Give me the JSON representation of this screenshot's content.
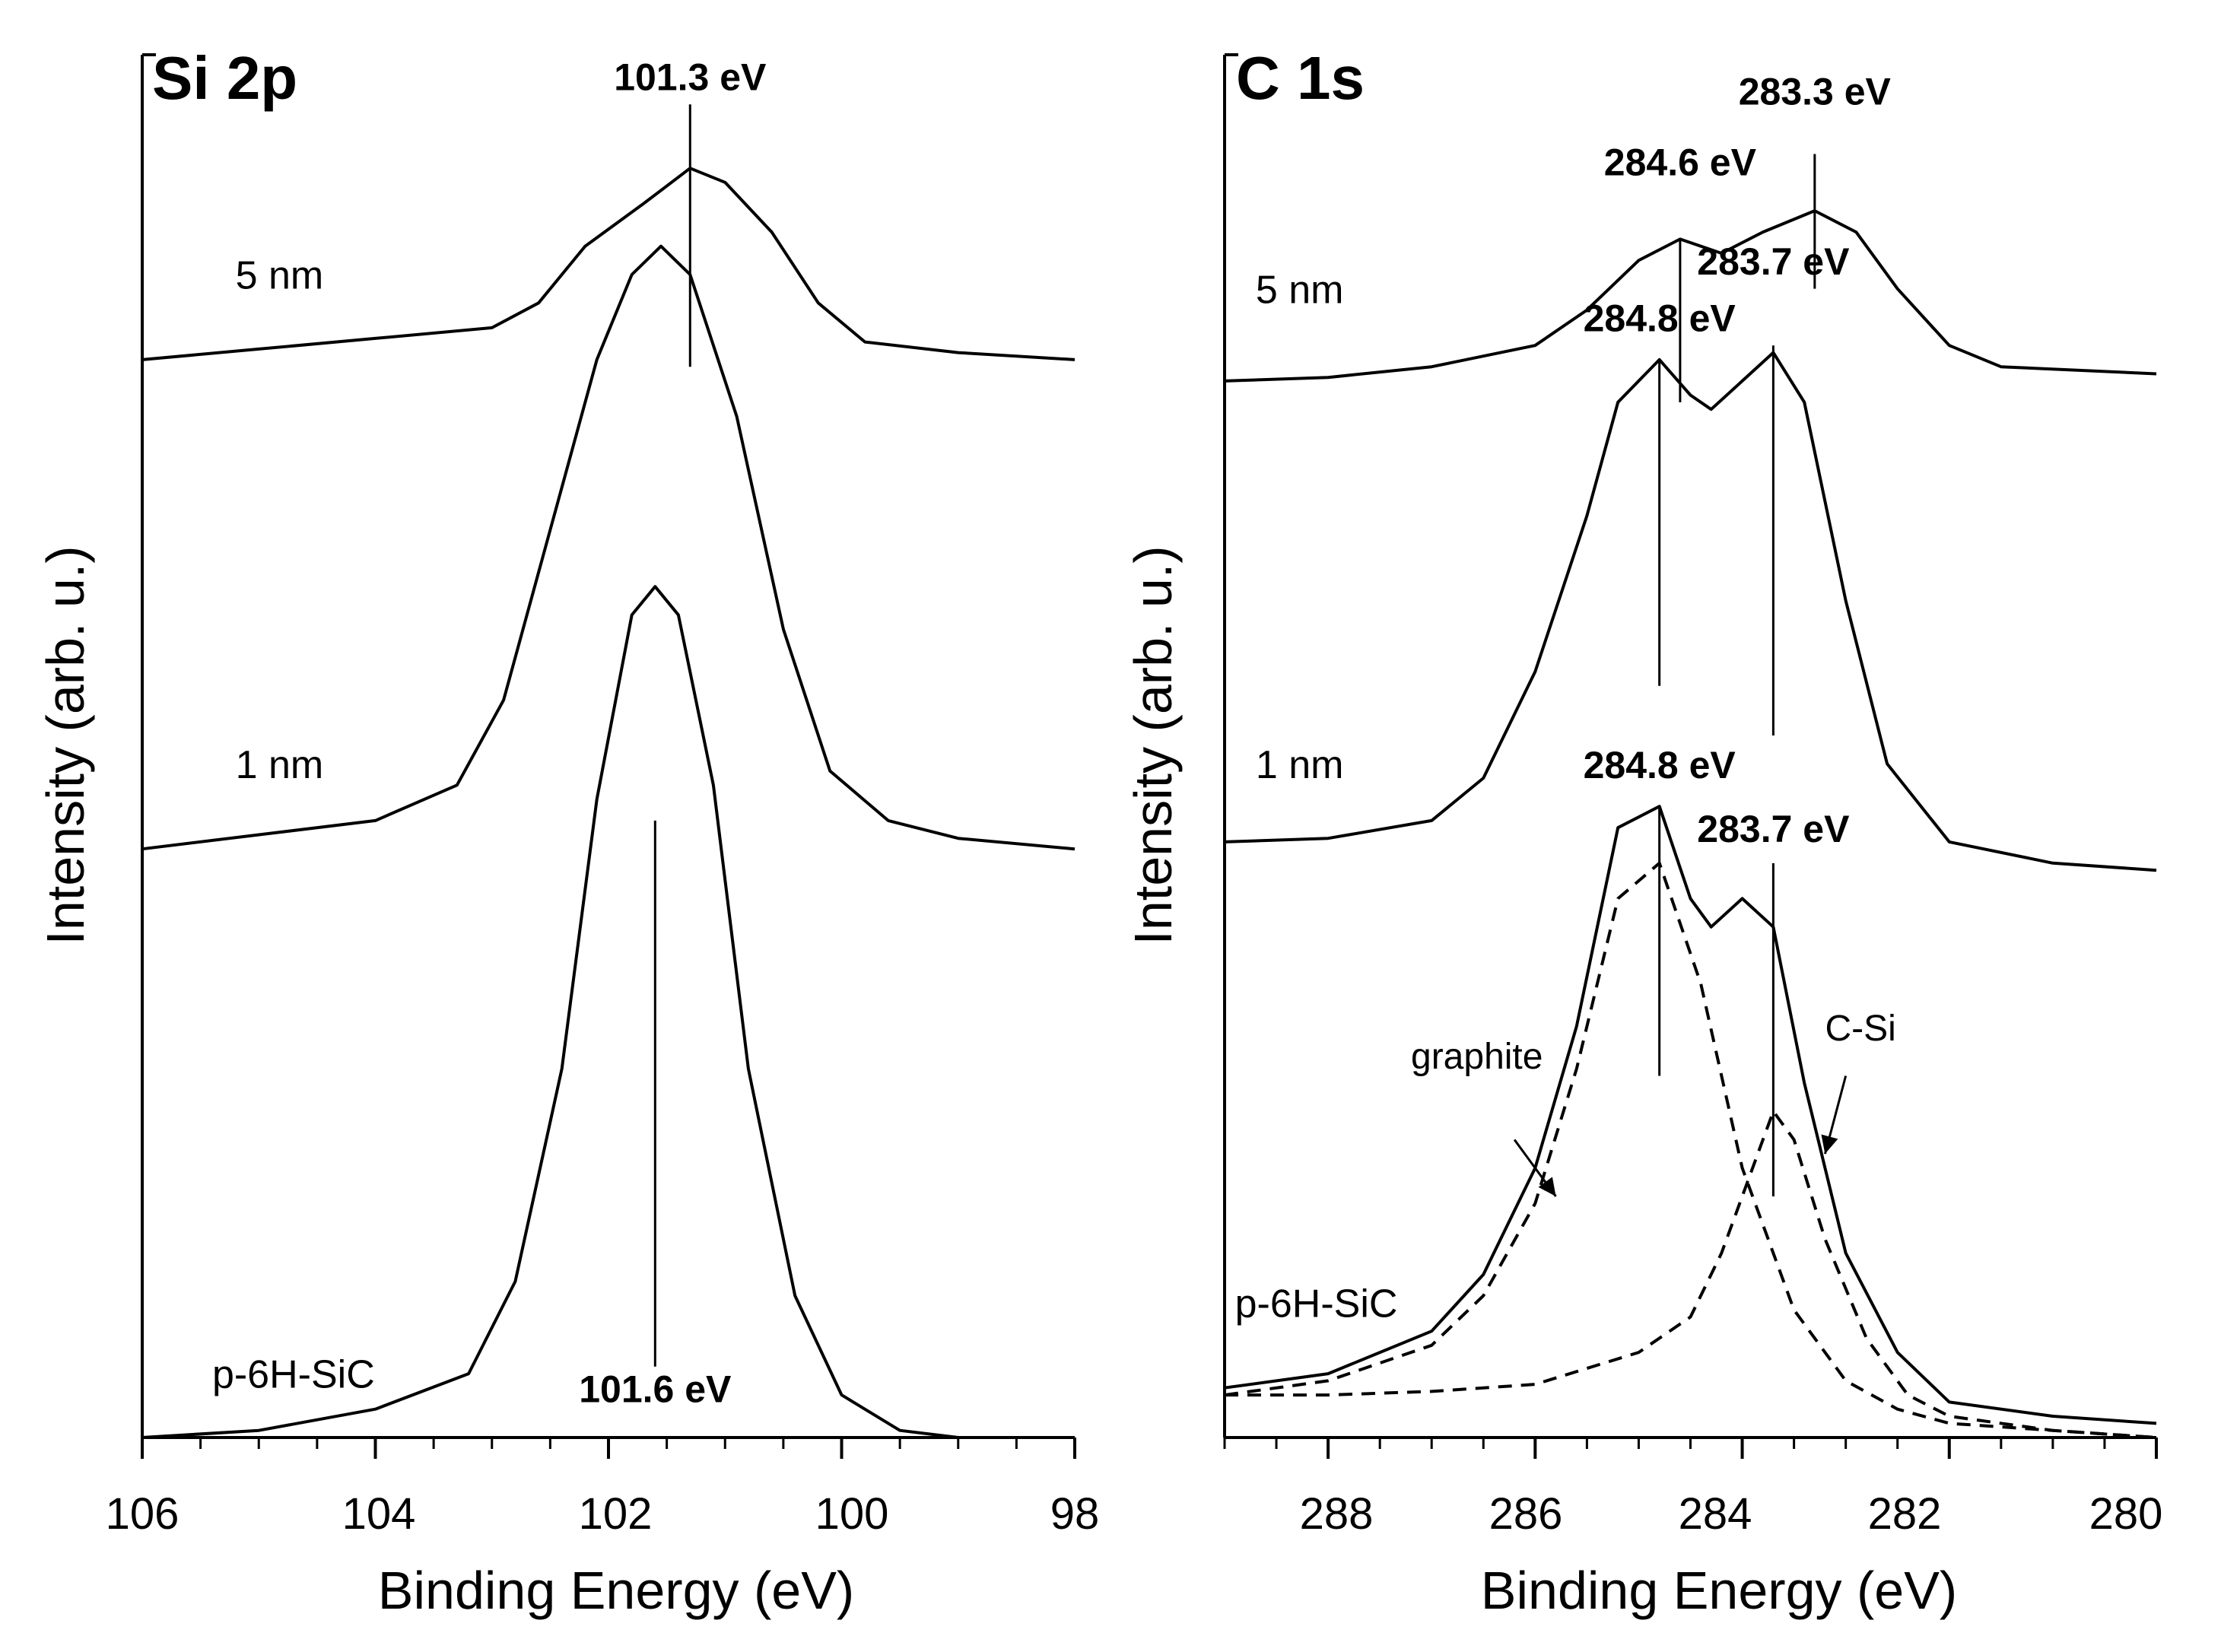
{
  "chart_data": [
    {
      "type": "line",
      "title": "Si 2p",
      "xlabel": "Binding Energy (eV)",
      "ylabel": "Intensity (arb. u.)",
      "xlim": [
        106,
        98
      ],
      "x_ticks": [
        "106",
        "104",
        "102",
        "100",
        "98"
      ],
      "ylim": [
        0,
        1.95
      ],
      "series": [
        {
          "name": "5 nm",
          "label": "5 nm",
          "label_x": 105.2,
          "label_y": 1.62,
          "points": [
            [
              106,
              1.52
            ],
            [
              105,
              1.535
            ],
            [
              104,
              1.55
            ],
            [
              103,
              1.565
            ],
            [
              102.6,
              1.6
            ],
            [
              102.2,
              1.68
            ],
            [
              101.7,
              1.74
            ],
            [
              101.3,
              1.79
            ],
            [
              101,
              1.77
            ],
            [
              100.6,
              1.7
            ],
            [
              100.2,
              1.6
            ],
            [
              99.8,
              1.545
            ],
            [
              99,
              1.53
            ],
            [
              98,
              1.52
            ]
          ]
        },
        {
          "name": "1 nm",
          "label": "1 nm",
          "label_x": 105.2,
          "label_y": 0.93,
          "points": [
            [
              106,
              0.83
            ],
            [
              105,
              0.85
            ],
            [
              104,
              0.87
            ],
            [
              103.3,
              0.92
            ],
            [
              102.9,
              1.04
            ],
            [
              102.5,
              1.28
            ],
            [
              102.1,
              1.52
            ],
            [
              101.8,
              1.64
            ],
            [
              101.55,
              1.68
            ],
            [
              101.3,
              1.64
            ],
            [
              100.9,
              1.44
            ],
            [
              100.5,
              1.14
            ],
            [
              100.1,
              0.94
            ],
            [
              99.6,
              0.87
            ],
            [
              99,
              0.845
            ],
            [
              98,
              0.83
            ]
          ]
        },
        {
          "name": "p-6H-SiC",
          "label": "p-6H-SiC",
          "label_x": 105.4,
          "label_y": 0.07,
          "points": [
            [
              106,
              0
            ],
            [
              105,
              0.01
            ],
            [
              104,
              0.04
            ],
            [
              103.2,
              0.09
            ],
            [
              102.8,
              0.22
            ],
            [
              102.4,
              0.52
            ],
            [
              102.1,
              0.9
            ],
            [
              101.8,
              1.16
            ],
            [
              101.6,
              1.2
            ],
            [
              101.4,
              1.16
            ],
            [
              101.1,
              0.92
            ],
            [
              100.8,
              0.52
            ],
            [
              100.4,
              0.2
            ],
            [
              100,
              0.06
            ],
            [
              99.5,
              0.01
            ],
            [
              99,
              0
            ],
            [
              98,
              0
            ]
          ]
        }
      ],
      "peak_lines": [
        {
          "x": 101.3,
          "y0": 1.51,
          "y1": 1.88,
          "label": "101.3 eV",
          "label_y": 1.9
        },
        {
          "x": 101.6,
          "y0": 0.1,
          "y1": 0.87,
          "label": "101.6 eV",
          "label_y": 0.05
        }
      ]
    },
    {
      "type": "line",
      "title": "C 1s",
      "xlabel": "Binding Energy (eV)",
      "ylabel": "Intensity (arb. u.)",
      "xlim": [
        289,
        280
      ],
      "x_ticks": [
        "288",
        "286",
        "284",
        "282",
        "280"
      ],
      "ylim": [
        0,
        1.95
      ],
      "series": [
        {
          "name": "5 nm",
          "label": "5 nm",
          "label_x": 288.7,
          "label_y": 1.6,
          "points": [
            [
              289,
              1.49
            ],
            [
              288,
              1.495
            ],
            [
              287,
              1.51
            ],
            [
              286,
              1.54
            ],
            [
              285.5,
              1.59
            ],
            [
              285,
              1.66
            ],
            [
              284.6,
              1.69
            ],
            [
              284.2,
              1.67
            ],
            [
              283.8,
              1.7
            ],
            [
              283.3,
              1.73
            ],
            [
              282.9,
              1.7
            ],
            [
              282.5,
              1.62
            ],
            [
              282,
              1.54
            ],
            [
              281.5,
              1.51
            ],
            [
              280,
              1.5
            ]
          ]
        },
        {
          "name": "1 nm",
          "label": "1 nm",
          "label_x": 288.7,
          "label_y": 0.93,
          "points": [
            [
              289,
              0.84
            ],
            [
              288,
              0.845
            ],
            [
              287,
              0.87
            ],
            [
              286.5,
              0.93
            ],
            [
              286,
              1.08
            ],
            [
              285.5,
              1.3
            ],
            [
              285.2,
              1.46
            ],
            [
              284.8,
              1.52
            ],
            [
              284.5,
              1.47
            ],
            [
              284.3,
              1.45
            ],
            [
              284,
              1.49
            ],
            [
              283.7,
              1.53
            ],
            [
              283.4,
              1.46
            ],
            [
              283,
              1.18
            ],
            [
              282.6,
              0.95
            ],
            [
              282,
              0.84
            ],
            [
              281,
              0.81
            ],
            [
              280,
              0.8
            ]
          ]
        },
        {
          "name": "p-6H-SiC",
          "label": "p-6H-SiC",
          "label_x": 288.9,
          "label_y": 0.17,
          "points": [
            [
              289,
              0.07
            ],
            [
              288,
              0.09
            ],
            [
              287,
              0.15
            ],
            [
              286.5,
              0.23
            ],
            [
              286,
              0.38
            ],
            [
              285.6,
              0.58
            ],
            [
              285.2,
              0.86
            ],
            [
              284.8,
              0.89
            ],
            [
              284.5,
              0.76
            ],
            [
              284.3,
              0.72
            ],
            [
              284,
              0.76
            ],
            [
              283.7,
              0.72
            ],
            [
              283.4,
              0.5
            ],
            [
              283,
              0.26
            ],
            [
              282.5,
              0.12
            ],
            [
              282,
              0.05
            ],
            [
              281,
              0.03
            ],
            [
              280,
              0.02
            ]
          ]
        },
        {
          "name": "graphite",
          "label": "graphite",
          "dashed": true,
          "points": [
            [
              289,
              0.06
            ],
            [
              288,
              0.08
            ],
            [
              287,
              0.13
            ],
            [
              286.5,
              0.2
            ],
            [
              286,
              0.33
            ],
            [
              285.6,
              0.52
            ],
            [
              285.2,
              0.76
            ],
            [
              284.8,
              0.81
            ],
            [
              284.4,
              0.64
            ],
            [
              284,
              0.38
            ],
            [
              283.5,
              0.18
            ],
            [
              283,
              0.08
            ],
            [
              282.5,
              0.04
            ],
            [
              282,
              0.02
            ],
            [
              281,
              0.01
            ],
            [
              280,
              0
            ]
          ]
        },
        {
          "name": "C-Si",
          "label": "C-Si",
          "dashed": true,
          "points": [
            [
              289,
              0.06
            ],
            [
              288,
              0.06
            ],
            [
              287,
              0.065
            ],
            [
              286,
              0.075
            ],
            [
              285,
              0.12
            ],
            [
              284.5,
              0.17
            ],
            [
              284.2,
              0.26
            ],
            [
              283.9,
              0.38
            ],
            [
              283.7,
              0.46
            ],
            [
              283.5,
              0.42
            ],
            [
              283.2,
              0.28
            ],
            [
              282.8,
              0.14
            ],
            [
              282.4,
              0.06
            ],
            [
              282,
              0.03
            ],
            [
              281,
              0.01
            ],
            [
              280,
              0
            ]
          ]
        }
      ],
      "peak_lines": [
        {
          "x": 284.6,
          "y0": 1.46,
          "y1": 1.69,
          "label": "284.6 eV",
          "label_y": 1.78
        },
        {
          "x": 283.3,
          "y0": 1.62,
          "y1": 1.81,
          "label": "283.3 eV",
          "label_y": 1.88
        },
        {
          "x": 284.8,
          "y0": 1.06,
          "y1": 1.52,
          "label": "284.8 eV",
          "label_y": 1.56
        },
        {
          "x": 283.7,
          "y0": 0.99,
          "y1": 1.54,
          "label": "283.7 eV",
          "label_y": 1.64
        },
        {
          "x": 284.8,
          "y0": 0.51,
          "y1": 0.89,
          "label": "284.8 eV",
          "label_y": 0.93
        },
        {
          "x": 283.7,
          "y0": 0.34,
          "y1": 0.81,
          "label": "283.7 eV",
          "label_y": 0.84
        }
      ],
      "annotations": [
        {
          "text": "graphite",
          "text_x": 287.2,
          "text_y": 0.52,
          "arrow_from": [
            286.2,
            0.42
          ],
          "arrow_to": [
            285.8,
            0.34
          ]
        },
        {
          "text": "C-Si",
          "text_x": 283.2,
          "text_y": 0.56,
          "arrow_from": [
            283.0,
            0.51
          ],
          "arrow_to": [
            283.2,
            0.4
          ]
        }
      ]
    }
  ]
}
